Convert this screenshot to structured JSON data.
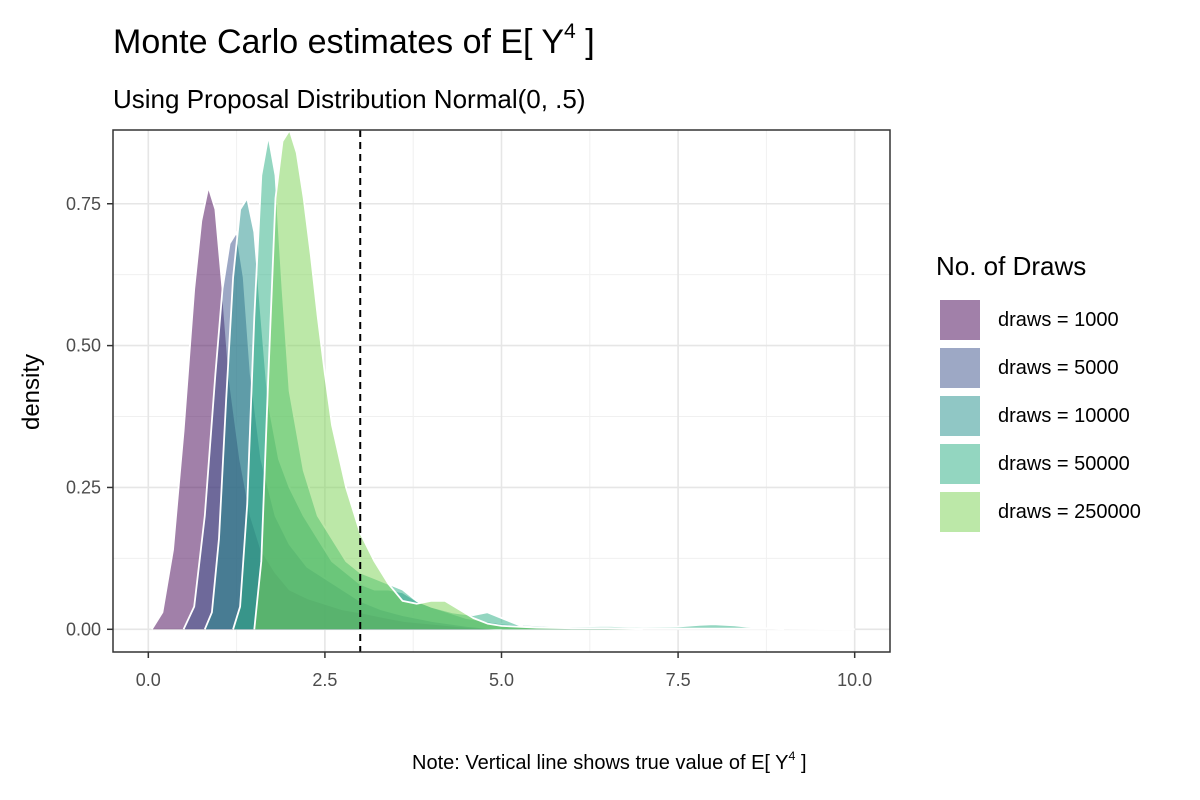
{
  "chart_data": {
    "type": "area",
    "title": "Monte Carlo estimates of E[ Y",
    "title_sup": "4",
    "title_end": " ]",
    "subtitle": "Using Proposal Distribution Normal(0, .5)",
    "ylabel": "density",
    "xlabel": "",
    "xlim": [
      -0.5,
      10.5
    ],
    "ylim": [
      -0.04,
      0.88
    ],
    "x_ticks": [
      0.0,
      2.5,
      5.0,
      7.5,
      10.0
    ],
    "x_tick_labels": [
      "0.0",
      "2.5",
      "5.0",
      "7.5",
      "10.0"
    ],
    "y_ticks": [
      0.0,
      0.25,
      0.5,
      0.75
    ],
    "y_tick_labels": [
      "0.00",
      "0.25",
      "0.50",
      "0.75"
    ],
    "grid": true,
    "reference_line": {
      "x": 3.0,
      "style": "dashed"
    },
    "legend": {
      "title": "No. of Draws",
      "position": "right",
      "entries": [
        "draws = 1000",
        "draws = 5000",
        "draws = 10000",
        "draws = 50000",
        "draws = 250000"
      ]
    },
    "caption": "Note: Vertical line shows true value of E[ Y",
    "caption_sup": "4",
    "caption_end": " ]",
    "series": [
      {
        "name": "draws = 1000",
        "color": "#440154",
        "x": [
          0.05,
          0.2,
          0.35,
          0.5,
          0.65,
          0.75,
          0.85,
          0.95,
          1.05,
          1.15,
          1.3,
          1.45,
          1.6,
          1.8,
          2.0,
          2.25,
          2.5,
          2.75,
          3.0,
          3.3,
          3.6,
          4.0,
          4.5,
          5.0
        ],
        "y": [
          0.0,
          0.03,
          0.14,
          0.35,
          0.6,
          0.72,
          0.78,
          0.74,
          0.6,
          0.44,
          0.3,
          0.2,
          0.14,
          0.1,
          0.07,
          0.055,
          0.045,
          0.035,
          0.03,
          0.022,
          0.015,
          0.01,
          0.004,
          0.0
        ]
      },
      {
        "name": "draws = 5000",
        "color": "#3b528b",
        "x": [
          0.5,
          0.65,
          0.8,
          0.95,
          1.05,
          1.15,
          1.25,
          1.35,
          1.45,
          1.6,
          1.8,
          2.0,
          2.25,
          2.5,
          2.75,
          3.0,
          3.3,
          3.6,
          4.0,
          4.5,
          5.0
        ],
        "y": [
          0.0,
          0.04,
          0.2,
          0.45,
          0.6,
          0.68,
          0.7,
          0.62,
          0.45,
          0.3,
          0.2,
          0.15,
          0.11,
          0.09,
          0.07,
          0.05,
          0.035,
          0.025,
          0.015,
          0.006,
          0.0
        ]
      },
      {
        "name": "draws = 10000",
        "color": "#21908c",
        "x": [
          0.8,
          0.9,
          1.0,
          1.1,
          1.2,
          1.3,
          1.4,
          1.5,
          1.6,
          1.7,
          1.85,
          2.0,
          2.2,
          2.4,
          2.6,
          2.8,
          3.0,
          3.2,
          3.4,
          3.6,
          3.8,
          4.0,
          4.5,
          5.0,
          6.0,
          7.0
        ],
        "y": [
          0.0,
          0.03,
          0.16,
          0.4,
          0.62,
          0.74,
          0.76,
          0.7,
          0.55,
          0.4,
          0.3,
          0.25,
          0.2,
          0.16,
          0.12,
          0.1,
          0.08,
          0.07,
          0.07,
          0.065,
          0.05,
          0.04,
          0.02,
          0.01,
          0.004,
          0.0
        ]
      },
      {
        "name": "draws = 50000",
        "color": "#27ad81",
        "x": [
          1.2,
          1.3,
          1.4,
          1.5,
          1.6,
          1.7,
          1.8,
          1.9,
          2.0,
          2.2,
          2.4,
          2.6,
          2.8,
          3.0,
          3.2,
          3.4,
          3.6,
          3.8,
          4.0,
          4.3,
          4.6,
          4.8,
          5.0,
          5.3,
          5.6,
          6.0,
          6.5,
          7.0,
          7.5,
          7.8,
          8.0,
          8.3,
          8.6,
          9.0
        ],
        "y": [
          0.0,
          0.04,
          0.22,
          0.55,
          0.8,
          0.87,
          0.8,
          0.6,
          0.42,
          0.28,
          0.2,
          0.16,
          0.12,
          0.1,
          0.09,
          0.08,
          0.07,
          0.05,
          0.04,
          0.03,
          0.025,
          0.03,
          0.02,
          0.005,
          0.003,
          0.005,
          0.006,
          0.004,
          0.005,
          0.008,
          0.009,
          0.007,
          0.003,
          0.0
        ]
      },
      {
        "name": "draws = 250000",
        "color": "#7ad151",
        "x": [
          1.5,
          1.6,
          1.7,
          1.8,
          1.9,
          2.0,
          2.1,
          2.2,
          2.3,
          2.4,
          2.5,
          2.6,
          2.8,
          3.0,
          3.2,
          3.4,
          3.6,
          3.8,
          4.0,
          4.2,
          4.4,
          4.6,
          4.8,
          5.0,
          5.5,
          6.0,
          6.5,
          7.0,
          8.0,
          9.0,
          10.0
        ],
        "y": [
          0.0,
          0.12,
          0.45,
          0.76,
          0.86,
          0.88,
          0.84,
          0.76,
          0.66,
          0.55,
          0.45,
          0.36,
          0.25,
          0.17,
          0.12,
          0.08,
          0.05,
          0.045,
          0.05,
          0.05,
          0.035,
          0.02,
          0.01,
          0.006,
          0.003,
          0.002,
          0.002,
          0.001,
          0.001,
          0.001,
          0.0
        ]
      }
    ]
  }
}
